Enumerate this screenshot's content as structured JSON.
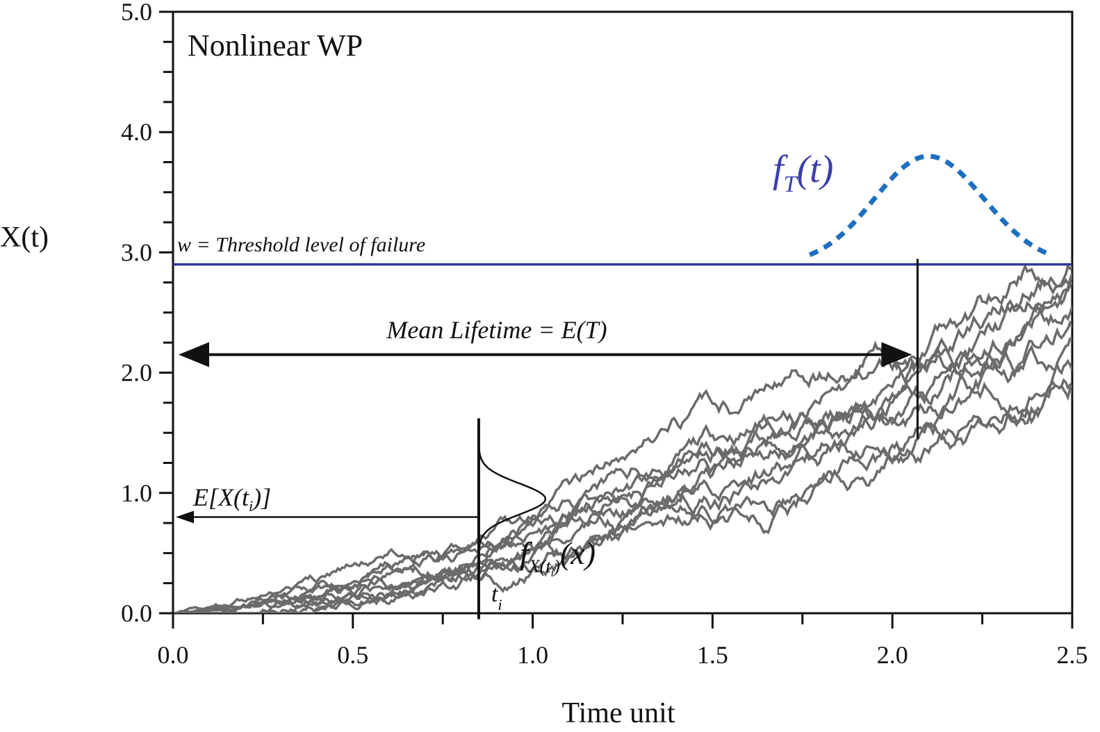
{
  "chart_data": {
    "type": "line",
    "title": "Nonlinear WP",
    "xlabel": "Time unit",
    "ylabel": "X(t)",
    "xlim": [
      0.0,
      2.5
    ],
    "ylim": [
      0.0,
      5.0
    ],
    "x_major_ticks": [
      "0.0",
      "0.5",
      "1.0",
      "1.5",
      "2.0",
      "2.5"
    ],
    "y_major_ticks": [
      "0.0",
      "1.0",
      "2.0",
      "3.0",
      "4.0",
      "5.0"
    ],
    "x_minor_step": 0.25,
    "y_minor_step": 0.25,
    "threshold": {
      "value": 2.9,
      "label": "w = Threshold level of failure",
      "color": "#2f3a9a"
    },
    "mean_lifetime": {
      "t": 2.07,
      "label": "Mean Lifetime = E(T)"
    },
    "ti_marker": {
      "t": 0.85,
      "label": "t",
      "subscript": "i"
    },
    "mean_at_ti": {
      "value": 0.8,
      "label": "E[X(t",
      "subscript": "i",
      "label_end": ")]"
    },
    "pdf_x_label": {
      "main": "f",
      "sub": "X(t",
      "subsub": "i",
      "sub_end": ")",
      "arg": "(x)"
    },
    "pdf_t_label": {
      "main": "f",
      "sub": "T",
      "arg": "(t)",
      "color": "#3a3faa"
    },
    "pdf_t_curve": {
      "color": "#1f6fc0",
      "t_start": 1.77,
      "t_peak": 2.1,
      "t_end": 2.44,
      "base": 2.9,
      "peak": 3.8
    },
    "path_color": "#6b6b6b",
    "paths": [
      {
        "name": "path-1",
        "a": 0.64,
        "b": 1.56,
        "seed": 11
      },
      {
        "name": "path-2",
        "a": 0.55,
        "b": 1.55,
        "seed": 23
      },
      {
        "name": "path-3",
        "a": 0.7,
        "b": 1.5,
        "seed": 37
      },
      {
        "name": "path-4",
        "a": 0.48,
        "b": 1.58,
        "seed": 41
      },
      {
        "name": "path-5",
        "a": 0.6,
        "b": 1.62,
        "seed": 53
      },
      {
        "name": "path-6",
        "a": 0.52,
        "b": 1.52,
        "seed": 67
      },
      {
        "name": "path-7",
        "a": 0.66,
        "b": 1.6,
        "seed": 79
      },
      {
        "name": "path-8",
        "a": 0.45,
        "b": 1.54,
        "seed": 83
      },
      {
        "name": "path-9",
        "a": 0.58,
        "b": 1.58,
        "seed": 97
      },
      {
        "name": "path-10",
        "a": 0.5,
        "b": 1.6,
        "seed": 101
      }
    ]
  }
}
